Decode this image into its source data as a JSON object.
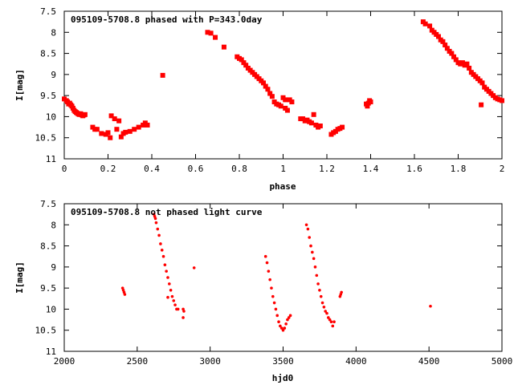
{
  "chart_data": [
    {
      "type": "scatter",
      "title": "095109-5708.8 phased with P=343.0day",
      "xlabel": "phase",
      "ylabel": "I[mag]",
      "xlim": [
        0,
        2
      ],
      "ylim": [
        11,
        7.5
      ],
      "y_reversed": true,
      "xticks": [
        "0",
        "0.2",
        "0.4",
        "0.6",
        "0.8",
        "1",
        "1.2",
        "1.4",
        "1.6",
        "1.8",
        "2"
      ],
      "yticks": [
        "7.5",
        "8",
        "8.5",
        "9",
        "9.5",
        "10",
        "10.5",
        "11"
      ],
      "grid": false,
      "marker_color": "#ff0000",
      "series": [
        {
          "points": [
            [
              0.0,
              9.58
            ],
            [
              0.01,
              9.62
            ],
            [
              0.015,
              9.65
            ],
            [
              0.02,
              9.7
            ],
            [
              0.025,
              9.68
            ],
            [
              0.03,
              9.72
            ],
            [
              0.035,
              9.75
            ],
            [
              0.04,
              9.8
            ],
            [
              0.045,
              9.85
            ],
            [
              0.05,
              9.88
            ],
            [
              0.055,
              9.9
            ],
            [
              0.06,
              9.92
            ],
            [
              0.065,
              9.94
            ],
            [
              0.07,
              9.95
            ],
            [
              0.075,
              9.93
            ],
            [
              0.08,
              9.96
            ],
            [
              0.085,
              9.98
            ],
            [
              0.09,
              9.96
            ],
            [
              0.095,
              9.95
            ],
            [
              0.13,
              10.25
            ],
            [
              0.14,
              10.3
            ],
            [
              0.15,
              10.3
            ],
            [
              0.17,
              10.4
            ],
            [
              0.19,
              10.42
            ],
            [
              0.2,
              10.38
            ],
            [
              0.21,
              10.5
            ],
            [
              0.215,
              9.98
            ],
            [
              0.23,
              10.05
            ],
            [
              0.24,
              10.3
            ],
            [
              0.25,
              10.1
            ],
            [
              0.26,
              10.48
            ],
            [
              0.27,
              10.4
            ],
            [
              0.28,
              10.37
            ],
            [
              0.3,
              10.35
            ],
            [
              0.32,
              10.3
            ],
            [
              0.34,
              10.25
            ],
            [
              0.36,
              10.2
            ],
            [
              0.37,
              10.15
            ],
            [
              0.38,
              10.2
            ],
            [
              0.45,
              9.02
            ],
            [
              0.655,
              8.0
            ],
            [
              0.67,
              8.02
            ],
            [
              0.69,
              8.12
            ],
            [
              0.73,
              8.35
            ],
            [
              0.79,
              8.58
            ],
            [
              0.8,
              8.62
            ],
            [
              0.81,
              8.65
            ],
            [
              0.82,
              8.72
            ],
            [
              0.83,
              8.78
            ],
            [
              0.84,
              8.85
            ],
            [
              0.85,
              8.9
            ],
            [
              0.86,
              8.95
            ],
            [
              0.87,
              9.0
            ],
            [
              0.88,
              9.05
            ],
            [
              0.89,
              9.1
            ],
            [
              0.9,
              9.15
            ],
            [
              0.91,
              9.2
            ],
            [
              0.92,
              9.28
            ],
            [
              0.93,
              9.35
            ],
            [
              0.94,
              9.45
            ],
            [
              0.95,
              9.52
            ],
            [
              0.96,
              9.65
            ],
            [
              0.97,
              9.7
            ],
            [
              0.98,
              9.72
            ],
            [
              0.99,
              9.75
            ],
            [
              1.0,
              9.55
            ],
            [
              1.01,
              9.6
            ],
            [
              1.01,
              9.8
            ],
            [
              1.02,
              9.85
            ],
            [
              1.03,
              9.6
            ],
            [
              1.04,
              9.65
            ],
            [
              1.08,
              10.05
            ],
            [
              1.09,
              10.05
            ],
            [
              1.1,
              10.1
            ],
            [
              1.11,
              10.08
            ],
            [
              1.12,
              10.12
            ],
            [
              1.13,
              10.15
            ],
            [
              1.14,
              9.95
            ],
            [
              1.15,
              10.2
            ],
            [
              1.16,
              10.25
            ],
            [
              1.17,
              10.22
            ],
            [
              1.22,
              10.42
            ],
            [
              1.23,
              10.38
            ],
            [
              1.24,
              10.35
            ],
            [
              1.25,
              10.3
            ],
            [
              1.26,
              10.28
            ],
            [
              1.27,
              10.25
            ],
            [
              1.38,
              9.7
            ],
            [
              1.385,
              9.75
            ],
            [
              1.39,
              9.68
            ],
            [
              1.395,
              9.62
            ],
            [
              1.4,
              9.65
            ],
            [
              1.64,
              7.75
            ],
            [
              1.65,
              7.8
            ],
            [
              1.67,
              7.85
            ],
            [
              1.68,
              7.95
            ],
            [
              1.69,
              8.0
            ],
            [
              1.7,
              8.05
            ],
            [
              1.71,
              8.1
            ],
            [
              1.72,
              8.18
            ],
            [
              1.73,
              8.22
            ],
            [
              1.74,
              8.3
            ],
            [
              1.75,
              8.38
            ],
            [
              1.76,
              8.45
            ],
            [
              1.77,
              8.5
            ],
            [
              1.78,
              8.58
            ],
            [
              1.79,
              8.65
            ],
            [
              1.8,
              8.72
            ],
            [
              1.81,
              8.75
            ],
            [
              1.82,
              8.72
            ],
            [
              1.83,
              8.78
            ],
            [
              1.84,
              8.75
            ],
            [
              1.85,
              8.85
            ],
            [
              1.86,
              8.95
            ],
            [
              1.87,
              9.0
            ],
            [
              1.88,
              9.05
            ],
            [
              1.89,
              9.1
            ],
            [
              1.9,
              9.15
            ],
            [
              1.905,
              9.72
            ],
            [
              1.91,
              9.2
            ],
            [
              1.92,
              9.3
            ],
            [
              1.93,
              9.35
            ],
            [
              1.94,
              9.4
            ],
            [
              1.95,
              9.45
            ],
            [
              1.96,
              9.5
            ],
            [
              1.97,
              9.55
            ],
            [
              1.98,
              9.58
            ],
            [
              1.99,
              9.6
            ],
            [
              2.0,
              9.62
            ]
          ]
        }
      ]
    },
    {
      "type": "scatter",
      "title": "095109-5708.8 not phased light curve",
      "xlabel": "hjd0",
      "ylabel": "I[mag]",
      "xlim": [
        2000,
        5000
      ],
      "ylim": [
        11,
        7.5
      ],
      "y_reversed": true,
      "xticks": [
        "2000",
        "2500",
        "3000",
        "3500",
        "4000",
        "4500",
        "5000"
      ],
      "yticks": [
        "7.5",
        "8",
        "8.5",
        "9",
        "9.5",
        "10",
        "10.5",
        "11"
      ],
      "grid": false,
      "marker_color": "#ff0000",
      "series": [
        {
          "points": [
            [
              2400,
              9.5
            ],
            [
              2405,
              9.55
            ],
            [
              2410,
              9.6
            ],
            [
              2415,
              9.65
            ],
            [
              2615,
              7.75
            ],
            [
              2620,
              7.8
            ],
            [
              2625,
              7.85
            ],
            [
              2630,
              7.95
            ],
            [
              2640,
              8.1
            ],
            [
              2650,
              8.25
            ],
            [
              2660,
              8.45
            ],
            [
              2670,
              8.6
            ],
            [
              2680,
              8.75
            ],
            [
              2690,
              8.95
            ],
            [
              2700,
              9.1
            ],
            [
              2710,
              9.25
            ],
            [
              2720,
              9.4
            ],
            [
              2730,
              9.55
            ],
            [
              2740,
              9.7
            ],
            [
              2750,
              9.8
            ],
            [
              2760,
              9.9
            ],
            [
              2770,
              10.0
            ],
            [
              2780,
              10.0
            ],
            [
              2710,
              9.72
            ],
            [
              2815,
              10.0
            ],
            [
              2820,
              10.05
            ],
            [
              2815,
              10.2
            ],
            [
              2890,
              9.02
            ],
            [
              3380,
              8.75
            ],
            [
              3390,
              8.9
            ],
            [
              3400,
              9.1
            ],
            [
              3410,
              9.3
            ],
            [
              3420,
              9.5
            ],
            [
              3430,
              9.7
            ],
            [
              3440,
              9.85
            ],
            [
              3450,
              10.0
            ],
            [
              3460,
              10.15
            ],
            [
              3470,
              10.3
            ],
            [
              3480,
              10.4
            ],
            [
              3490,
              10.45
            ],
            [
              3500,
              10.5
            ],
            [
              3510,
              10.45
            ],
            [
              3520,
              10.35
            ],
            [
              3530,
              10.25
            ],
            [
              3540,
              10.2
            ],
            [
              3550,
              10.15
            ],
            [
              3660,
              8.0
            ],
            [
              3670,
              8.1
            ],
            [
              3680,
              8.3
            ],
            [
              3690,
              8.5
            ],
            [
              3700,
              8.65
            ],
            [
              3710,
              8.8
            ],
            [
              3720,
              9.0
            ],
            [
              3730,
              9.2
            ],
            [
              3740,
              9.4
            ],
            [
              3750,
              9.55
            ],
            [
              3760,
              9.7
            ],
            [
              3770,
              9.85
            ],
            [
              3780,
              9.95
            ],
            [
              3790,
              10.05
            ],
            [
              3800,
              10.1
            ],
            [
              3810,
              10.2
            ],
            [
              3820,
              10.25
            ],
            [
              3830,
              10.3
            ],
            [
              3840,
              10.4
            ],
            [
              3850,
              10.3
            ],
            [
              3890,
              9.7
            ],
            [
              3895,
              9.65
            ],
            [
              3900,
              9.6
            ],
            [
              4510,
              9.93
            ]
          ]
        }
      ]
    }
  ]
}
